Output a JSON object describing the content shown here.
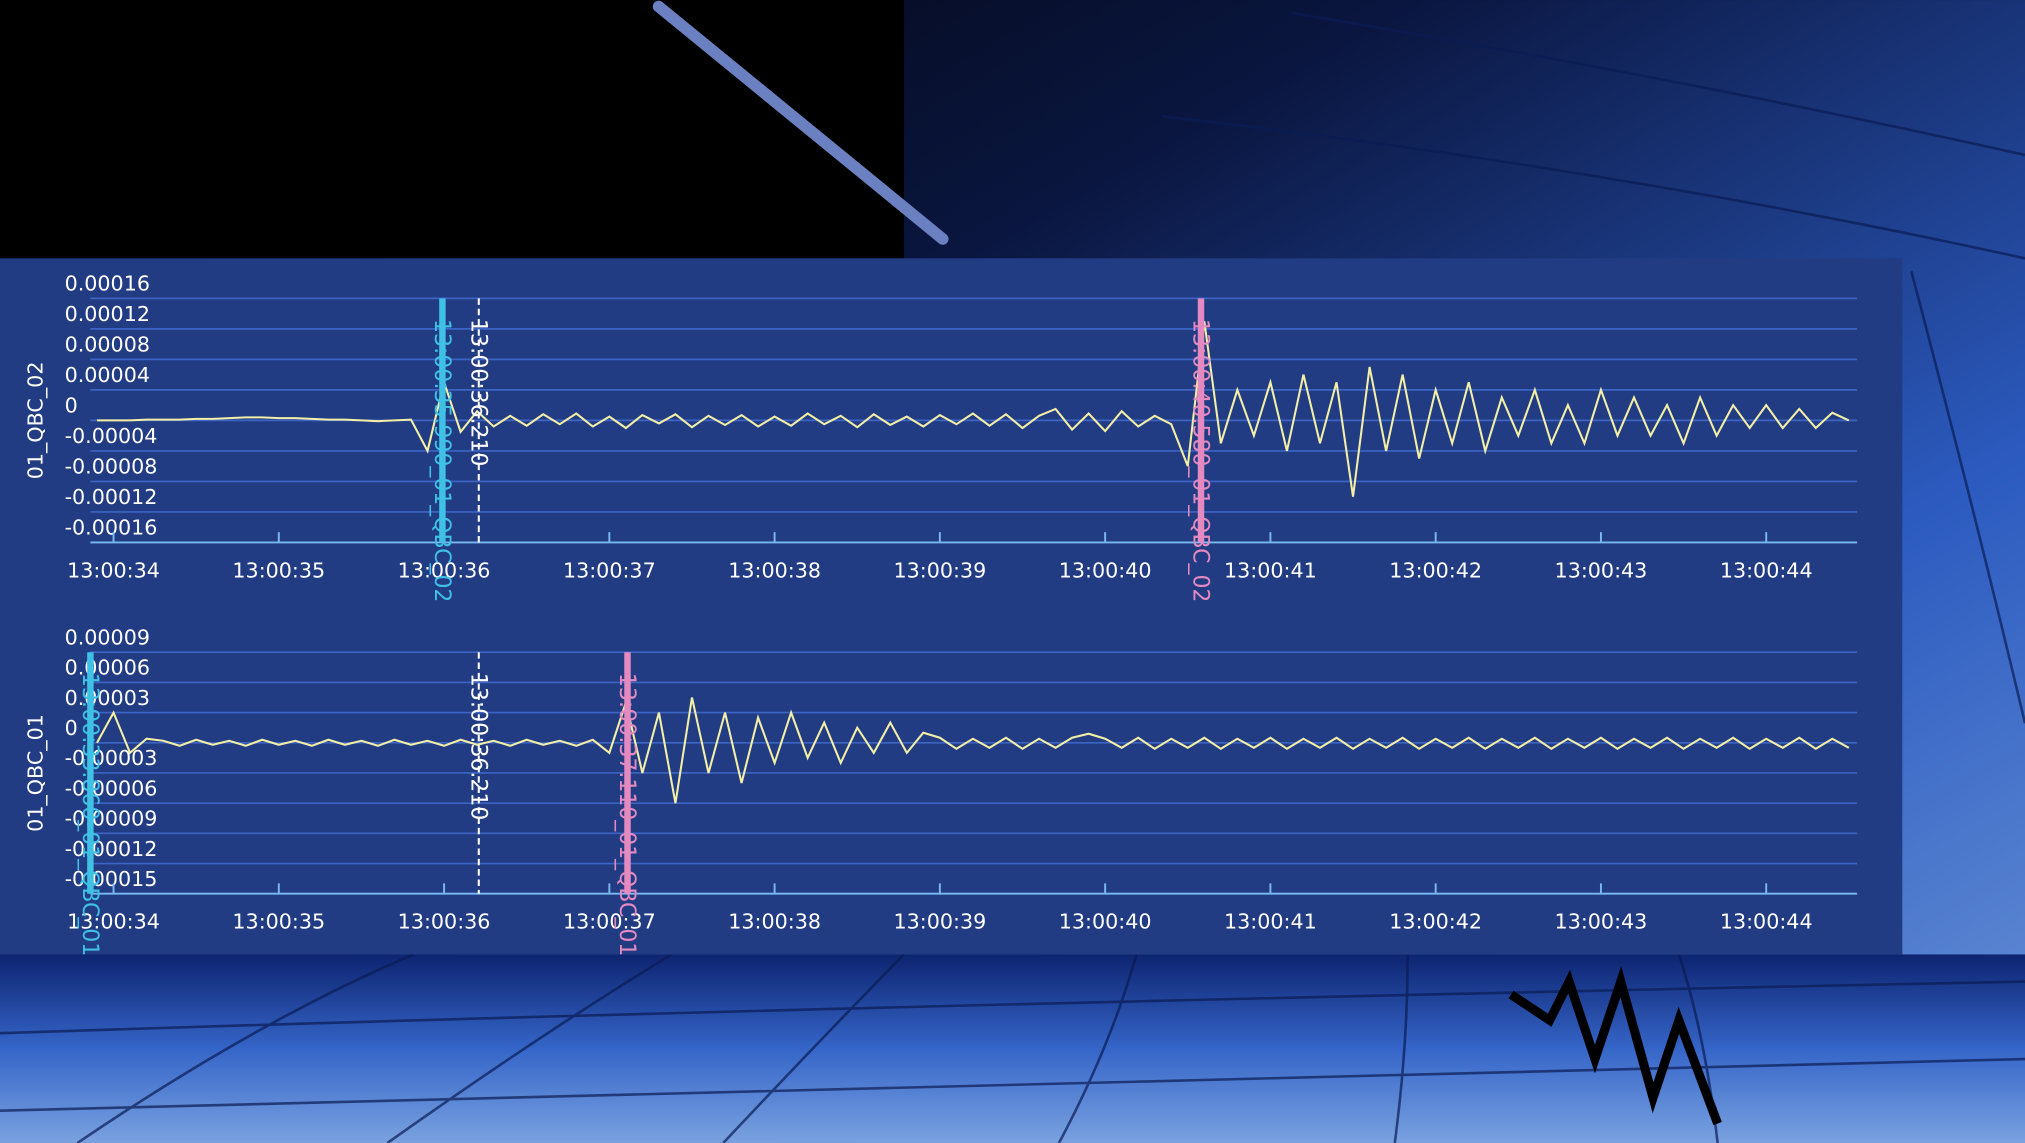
{
  "chart_data": [
    {
      "type": "line",
      "y_label": "01_QBC_02",
      "x": [
        33.9,
        34,
        34.1,
        34.2,
        34.3,
        34.4,
        34.5,
        34.6,
        34.7,
        34.8,
        34.9,
        35,
        35.1,
        35.2,
        35.3,
        35.4,
        35.5,
        35.6,
        35.7,
        35.8,
        35.9,
        36,
        36.1,
        36.2,
        36.3,
        36.4,
        36.5,
        36.6,
        36.7,
        36.8,
        36.9,
        37,
        37.1,
        37.2,
        37.3,
        37.4,
        37.5,
        37.6,
        37.7,
        37.8,
        37.9,
        38,
        38.1,
        38.2,
        38.3,
        38.4,
        38.5,
        38.6,
        38.7,
        38.8,
        38.9,
        39,
        39.1,
        39.2,
        39.3,
        39.4,
        39.5,
        39.6,
        39.7,
        39.8,
        39.9,
        40,
        40.1,
        40.2,
        40.3,
        40.4,
        40.5,
        40.6,
        40.7,
        40.8,
        40.9,
        41,
        41.1,
        41.2,
        41.3,
        41.4,
        41.5,
        41.6,
        41.7,
        41.8,
        41.9,
        42,
        42.1,
        42.2,
        42.3,
        42.4,
        42.5,
        42.6,
        42.7,
        42.8,
        42.9,
        43,
        43.1,
        43.2,
        43.3,
        43.4,
        43.5,
        43.6,
        43.7,
        43.8,
        43.9,
        44,
        44.1,
        44.2,
        44.3,
        44.4,
        44.5
      ],
      "series": [
        {
          "color": "#f3efa6",
          "values": [
            0,
            0,
            0,
            1e-06,
            1e-06,
            1e-06,
            2e-06,
            2e-06,
            3e-06,
            4e-06,
            4e-06,
            3e-06,
            3e-06,
            2e-06,
            1e-06,
            1e-06,
            0,
            -1e-06,
            0,
            1e-06,
            -4e-05,
            5e-05,
            -1.5e-05,
            1.2e-05,
            -8e-06,
            6e-06,
            -7e-06,
            8e-06,
            -5e-06,
            9e-06,
            -8e-06,
            5e-06,
            -1e-05,
            7e-06,
            -4e-06,
            8e-06,
            -9e-06,
            6e-06,
            -6e-06,
            7e-06,
            -8e-06,
            5e-06,
            -7e-06,
            9e-06,
            -5e-06,
            6e-06,
            -9e-06,
            8e-06,
            -6e-06,
            5e-06,
            -8e-06,
            7e-06,
            -5e-06,
            9e-06,
            -7e-06,
            8e-06,
            -1e-05,
            6e-06,
            1.5e-05,
            -1.2e-05,
            9e-06,
            -1.4e-05,
            1.2e-05,
            -8e-06,
            6e-06,
            -5e-06,
            -6e-05,
            0.00013,
            -3e-05,
            4e-05,
            -2e-05,
            5e-05,
            -4e-05,
            6e-05,
            -3e-05,
            5e-05,
            -0.0001,
            7e-05,
            -4e-05,
            6e-05,
            -5e-05,
            4e-05,
            -3e-05,
            5e-05,
            -4e-05,
            3e-05,
            -2e-05,
            4e-05,
            -3e-05,
            2e-05,
            -3e-05,
            4e-05,
            -2e-05,
            3e-05,
            -2e-05,
            2e-05,
            -3e-05,
            3e-05,
            -2e-05,
            2e-05,
            -1e-05,
            2e-05,
            -1e-05,
            1.5e-05,
            -1e-05,
            1e-05,
            0
          ]
        }
      ],
      "xlim": [
        33.86,
        44.55
      ],
      "xticks": [
        {
          "value": 34,
          "label": "13:00:34"
        },
        {
          "value": 35,
          "label": "13:00:35"
        },
        {
          "value": 36,
          "label": "13:00:36"
        },
        {
          "value": 37,
          "label": "13:00:37"
        },
        {
          "value": 38,
          "label": "13:00:38"
        },
        {
          "value": 39,
          "label": "13:00:39"
        },
        {
          "value": 40,
          "label": "13:00:40"
        },
        {
          "value": 41,
          "label": "13:00:41"
        },
        {
          "value": 42,
          "label": "13:00:42"
        },
        {
          "value": 43,
          "label": "13:00:43"
        },
        {
          "value": 44,
          "label": "13:00:44"
        }
      ],
      "ylim": [
        -0.00016,
        0.00016
      ],
      "yticks": [
        0.00016,
        0.00012,
        8e-05,
        4e-05,
        0,
        -4e-05,
        -8e-05,
        -0.00012,
        -0.00016
      ],
      "grid": true,
      "markers": [
        {
          "x": 35.99,
          "label": "13:00:35.990_01_QBC_02",
          "color": "#3fc1e6",
          "dashed": false
        },
        {
          "x": 36.21,
          "label": "13:00:36.210",
          "color": "#ffffff",
          "dashed": true
        },
        {
          "x": 40.58,
          "label": "13:00:40.580_01_QBC_02",
          "color": "#e58ac0",
          "dashed": false
        }
      ]
    },
    {
      "type": "line",
      "y_label": "01_QBC_01",
      "x": [
        33.9,
        34,
        34.1,
        34.2,
        34.3,
        34.4,
        34.5,
        34.6,
        34.7,
        34.8,
        34.9,
        35,
        35.1,
        35.2,
        35.3,
        35.4,
        35.5,
        35.6,
        35.7,
        35.8,
        35.9,
        36,
        36.1,
        36.2,
        36.3,
        36.4,
        36.5,
        36.6,
        36.7,
        36.8,
        36.9,
        37,
        37.1,
        37.2,
        37.3,
        37.4,
        37.5,
        37.6,
        37.7,
        37.8,
        37.9,
        38,
        38.1,
        38.2,
        38.3,
        38.4,
        38.5,
        38.6,
        38.7,
        38.8,
        38.9,
        39,
        39.1,
        39.2,
        39.3,
        39.4,
        39.5,
        39.6,
        39.7,
        39.8,
        39.9,
        40,
        40.1,
        40.2,
        40.3,
        40.4,
        40.5,
        40.6,
        40.7,
        40.8,
        40.9,
        41,
        41.1,
        41.2,
        41.3,
        41.4,
        41.5,
        41.6,
        41.7,
        41.8,
        41.9,
        42,
        42.1,
        42.2,
        42.3,
        42.4,
        42.5,
        42.6,
        42.7,
        42.8,
        42.9,
        43,
        43.1,
        43.2,
        43.3,
        43.4,
        43.5,
        43.6,
        43.7,
        43.8,
        43.9,
        44,
        44.1,
        44.2,
        44.3,
        44.4,
        44.5
      ],
      "series": [
        {
          "color": "#f3efa6",
          "values": [
            0,
            3e-05,
            -1e-05,
            4e-06,
            2e-06,
            -3e-06,
            3e-06,
            -2e-06,
            2e-06,
            -3e-06,
            3e-06,
            -2e-06,
            2e-06,
            -3e-06,
            3e-06,
            -2e-06,
            2e-06,
            -3e-06,
            3e-06,
            -2e-06,
            2e-06,
            -3e-06,
            3e-06,
            -2e-06,
            2e-06,
            -3e-06,
            3e-06,
            -2e-06,
            2e-06,
            -3e-06,
            3e-06,
            -1e-05,
            4e-05,
            -3e-05,
            3e-05,
            -6e-05,
            4.5e-05,
            -3e-05,
            3e-05,
            -4e-05,
            2.5e-05,
            -2e-05,
            3e-05,
            -1.5e-05,
            2e-05,
            -2e-05,
            1.5e-05,
            -1e-05,
            2e-05,
            -1e-05,
            1e-05,
            5e-06,
            -6e-06,
            4e-06,
            -5e-06,
            5e-06,
            -6e-06,
            4e-06,
            -5e-06,
            5e-06,
            9e-06,
            4e-06,
            -5e-06,
            5e-06,
            -6e-06,
            4e-06,
            -5e-06,
            5e-06,
            -6e-06,
            4e-06,
            -5e-06,
            5e-06,
            -6e-06,
            4e-06,
            -5e-06,
            5e-06,
            -6e-06,
            4e-06,
            -5e-06,
            5e-06,
            -6e-06,
            4e-06,
            -5e-06,
            5e-06,
            -6e-06,
            4e-06,
            -5e-06,
            5e-06,
            -6e-06,
            4e-06,
            -5e-06,
            5e-06,
            -6e-06,
            4e-06,
            -5e-06,
            5e-06,
            -6e-06,
            4e-06,
            -5e-06,
            5e-06,
            -6e-06,
            4e-06,
            -5e-06,
            5e-06,
            -6e-06,
            4e-06,
            -5e-06
          ]
        }
      ],
      "xlim": [
        33.86,
        44.55
      ],
      "xticks": [
        {
          "value": 34,
          "label": "13:00:34"
        },
        {
          "value": 35,
          "label": "13:00:35"
        },
        {
          "value": 36,
          "label": "13:00:36"
        },
        {
          "value": 37,
          "label": "13:00:37"
        },
        {
          "value": 38,
          "label": "13:00:38"
        },
        {
          "value": 39,
          "label": "13:00:39"
        },
        {
          "value": 40,
          "label": "13:00:40"
        },
        {
          "value": 41,
          "label": "13:00:41"
        },
        {
          "value": 42,
          "label": "13:00:42"
        },
        {
          "value": 43,
          "label": "13:00:43"
        },
        {
          "value": 44,
          "label": "13:00:44"
        }
      ],
      "ylim": [
        -0.00015,
        9e-05
      ],
      "yticks": [
        9e-05,
        6e-05,
        3e-05,
        0,
        -3e-05,
        -6e-05,
        -9e-05,
        -0.00012,
        -0.00015
      ],
      "grid": true,
      "markers": [
        {
          "x": 33.86,
          "label": "13:00:33.860_01_QBC_01",
          "color": "#3fc1e6",
          "dashed": false
        },
        {
          "x": 36.21,
          "label": "13:00:36.210",
          "color": "#ffffff",
          "dashed": true
        },
        {
          "x": 37.11,
          "label": "13:00:37.110_01_QBC_01",
          "color": "#e58ac0",
          "dashed": false
        }
      ]
    }
  ]
}
